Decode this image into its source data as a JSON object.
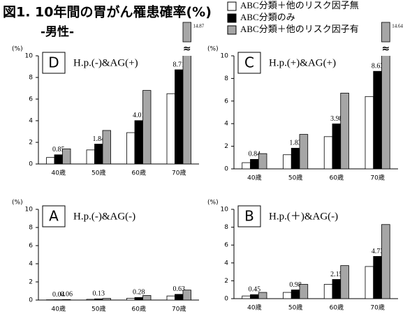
{
  "title": "図1. 10年間の胃がん罹患確率(%)",
  "subtitle": "-男性-",
  "legend": [
    {
      "name": "ABC分類＋他のリスク因子無",
      "color": "#ffffff"
    },
    {
      "name": "ABC分類のみ",
      "color": "#000000"
    },
    {
      "name": "ABC分類＋他のリスク因子有",
      "color": "#a6a6a6"
    }
  ],
  "chart_data": [
    {
      "type": "bar",
      "label": "D",
      "subtitle": "H.p.(-)&AG(+)",
      "y_unit": "(%)",
      "categories": [
        "40歳",
        "50歳",
        "60歳",
        "70歳"
      ],
      "ylim": [
        0,
        10
      ],
      "yticks": [
        0,
        2,
        4,
        6,
        8,
        10
      ],
      "series": [
        {
          "values": [
            0.6,
            1.3,
            2.9,
            6.5
          ]
        },
        {
          "values": [
            0.85,
            1.84,
            4.01,
            8.71
          ],
          "value_labels": [
            "0.85",
            "1.84",
            "4.01",
            "8.71"
          ]
        },
        {
          "values": [
            1.4,
            3.1,
            6.8,
            14.87
          ],
          "value_labels": [
            null,
            null,
            null,
            "14.87"
          ]
        }
      ]
    },
    {
      "type": "bar",
      "label": "C",
      "subtitle": "H.p.(+)&AG(+)",
      "y_unit": "(%)",
      "categories": [
        "40歳",
        "50歳",
        "60歳",
        "70歳"
      ],
      "ylim": [
        0,
        10
      ],
      "yticks": [
        0,
        2,
        4,
        6,
        8,
        10
      ],
      "series": [
        {
          "values": [
            0.55,
            1.25,
            2.85,
            6.4
          ]
        },
        {
          "values": [
            0.84,
            1.83,
            3.98,
            8.63
          ],
          "value_labels": [
            "0.84",
            "1.83",
            "3.98",
            "8.63"
          ]
        },
        {
          "values": [
            1.35,
            3.05,
            6.7,
            14.64
          ],
          "value_labels": [
            null,
            null,
            null,
            "14.64"
          ]
        }
      ]
    },
    {
      "type": "bar",
      "label": "A",
      "subtitle": "H.p.(-)&AG(-)",
      "y_unit": "(%)",
      "categories": [
        "40歳",
        "50歳",
        "60歳",
        "70歳"
      ],
      "ylim": [
        0,
        10
      ],
      "yticks": [
        0,
        2,
        4,
        6,
        8,
        10
      ],
      "series": [
        {
          "values": [
            0.03,
            0.08,
            0.2,
            0.45
          ]
        },
        {
          "values": [
            0.04,
            0.13,
            0.28,
            0.63
          ],
          "value_labels": [
            "0.04",
            "0.13",
            "0.28",
            "0.63"
          ]
        },
        {
          "values": [
            0.06,
            0.18,
            0.5,
            1.1
          ],
          "value_labels": [
            "0.06",
            null,
            null,
            null
          ]
        }
      ]
    },
    {
      "type": "bar",
      "label": "B",
      "subtitle": "H.p.(＋)&AG(-)",
      "y_unit": "(%)",
      "categories": [
        "40歳",
        "50歳",
        "60歳",
        "70歳"
      ],
      "ylim": [
        0,
        10
      ],
      "yticks": [
        0,
        2,
        4,
        6,
        8,
        10
      ],
      "series": [
        {
          "values": [
            0.3,
            0.7,
            1.6,
            3.6
          ]
        },
        {
          "values": [
            0.45,
            0.98,
            2.15,
            4.73
          ],
          "value_labels": [
            "0.45",
            "0.98",
            "2.15",
            "4.73"
          ]
        },
        {
          "values": [
            0.7,
            1.6,
            3.7,
            8.3
          ]
        }
      ]
    }
  ]
}
